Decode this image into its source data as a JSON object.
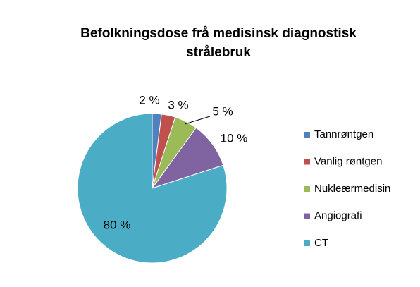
{
  "chart_data": {
    "type": "pie",
    "title": "Befolkningsdose frå medisinsk diagnostisk strålebruk",
    "categories": [
      "Tannrøntgen",
      "Vanlig røntgen",
      "Nukleærmedisin",
      "Angiografi",
      "CT"
    ],
    "values": [
      2,
      3,
      5,
      10,
      80
    ],
    "value_labels": [
      "2 %",
      "3 %",
      "5 %",
      "10 %",
      "80 %"
    ],
    "colors": [
      "#4f81bd",
      "#c0504d",
      "#9bbb59",
      "#8064a2",
      "#4bacc6"
    ],
    "legend": "right"
  }
}
